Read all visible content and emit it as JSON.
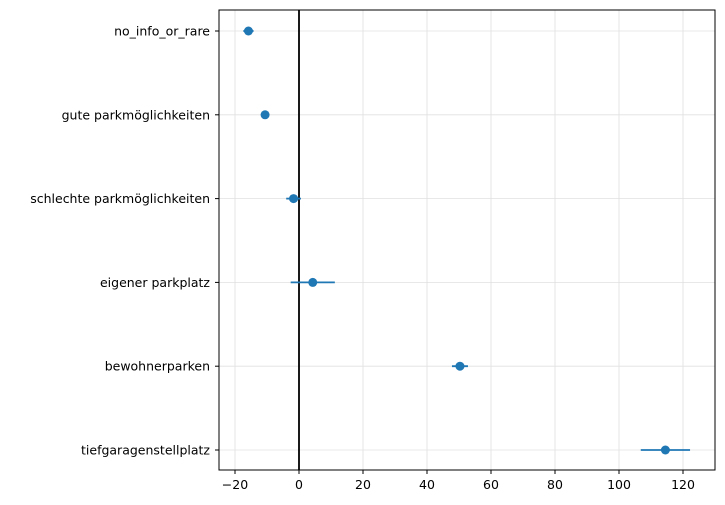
{
  "chart_data": {
    "type": "scatter",
    "title": "",
    "xlabel": "",
    "ylabel": "",
    "xlim": [
      -25,
      130
    ],
    "xticks": [
      -20,
      0,
      20,
      40,
      60,
      80,
      100,
      120
    ],
    "xtick_labels": [
      "−20",
      "0",
      "20",
      "40",
      "60",
      "80",
      "100",
      "120"
    ],
    "grid": true,
    "reference_line_x": 0,
    "categories": [
      "no_info_or_rare",
      "gute parkmöglichkeiten",
      "schlechte parkmöglichkeiten",
      "eigener parkplatz",
      "bewohnerparken",
      "tiefgaragenstellplatz"
    ],
    "series": [
      {
        "values": [
          -15.8,
          -10.6,
          -1.7,
          4.3,
          50.3,
          114.5
        ],
        "ci_low": [
          -17.4,
          -11.6,
          -4.0,
          -2.6,
          47.8,
          106.8
        ],
        "ci_high": [
          -14.2,
          -9.6,
          0.6,
          11.2,
          52.8,
          122.2
        ]
      }
    ],
    "colors": {
      "marker": "#1f77b4",
      "reference_line": "#000000",
      "grid": "#e0e0e0",
      "axes": "#000000"
    }
  }
}
